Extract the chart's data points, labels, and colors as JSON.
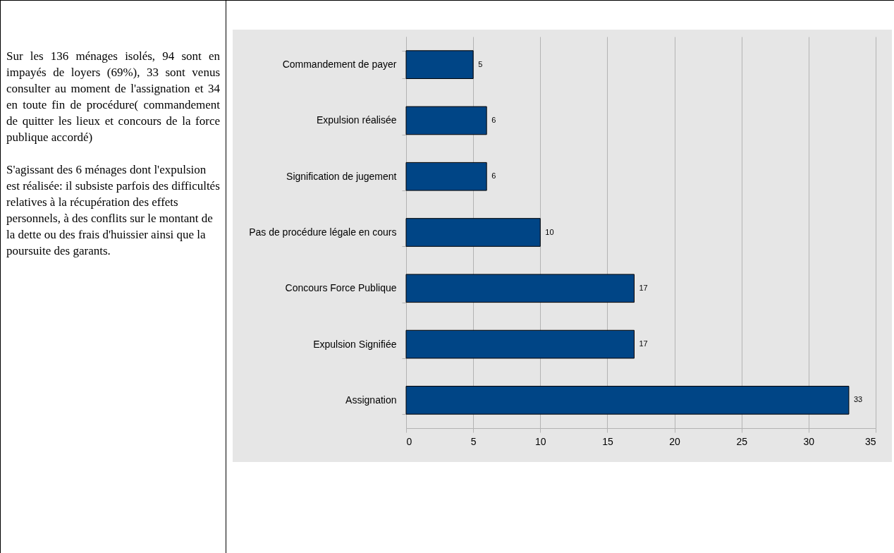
{
  "chart_data": {
    "type": "bar",
    "orientation": "horizontal",
    "categories": [
      "Commandement de payer",
      "Expulsion réalisée",
      "Signification de jugement",
      "Pas de procédure légale en cours",
      "Concours Force Publique",
      "Expulsion Signifiée",
      "Assignation"
    ],
    "values": [
      5,
      6,
      6,
      10,
      17,
      17,
      33
    ],
    "color": "#004586",
    "xlim": [
      0,
      35
    ],
    "xticks": [
      0,
      5,
      10,
      15,
      20,
      25,
      30,
      35
    ],
    "grid": "x",
    "data_labels": true,
    "annotations": [
      "Sur les 136 ménages isolés, 94 sont en impayés de loyers (69%), 33 sont venus consulter au moment de l'assignation et 34 en toute fin de procédure( commandement de quitter les lieux et concours de la force publique accordé)",
      "S'agissant des 6 ménages dont l'expulsion est réalisée: il subsiste parfois des difficultés relatives à la récupération des effets personnels, à des conflits sur le montant de la dette ou des frais d'huissier ainsi que la poursuite des garants."
    ]
  }
}
